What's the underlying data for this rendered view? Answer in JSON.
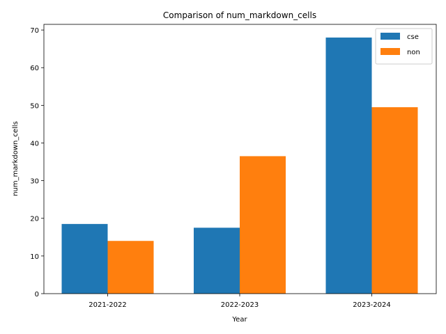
{
  "chart_data": {
    "type": "bar",
    "title": "Comparison of num_markdown_cells",
    "xlabel": "Year",
    "ylabel": "num_markdown_cells",
    "categories": [
      "2021-2022",
      "2022-2023",
      "2023-2024"
    ],
    "series": [
      {
        "name": "cse",
        "values": [
          18.5,
          17.5,
          68.0
        ],
        "color": "#1f77b4"
      },
      {
        "name": "non",
        "values": [
          14.0,
          36.5,
          49.5
        ],
        "color": "#ff7f0e"
      }
    ],
    "ylim": [
      0,
      71.5
    ],
    "yticks": [
      0,
      10,
      20,
      30,
      40,
      50,
      60,
      70
    ],
    "grid": false,
    "legend_position": "top-right"
  }
}
